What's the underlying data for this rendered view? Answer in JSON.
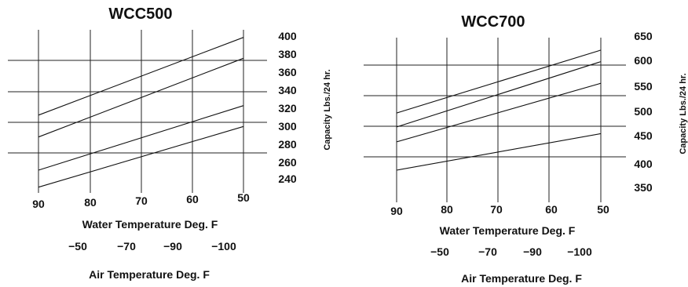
{
  "chart_data": [
    {
      "type": "line",
      "title": "WCC500",
      "xlabel": "Water Temperature Deg. F",
      "xlabel2": "Air Temperature Deg. F",
      "ylabel": "Capacity  Lbs./24 hr.",
      "x_ticks": [
        "90",
        "80",
        "70",
        "60",
        "50"
      ],
      "x2_ticks": [
        "−50",
        "−70",
        "−90",
        "−100"
      ],
      "y_ticks": [
        "400",
        "380",
        "360",
        "340",
        "320",
        "300",
        "280",
        "260",
        "240"
      ],
      "xlim": [
        90,
        50
      ],
      "ylim": [
        232,
        404
      ],
      "series": [
        {
          "x": [
            90,
            50
          ],
          "y": [
            314,
            396
          ]
        },
        {
          "x": [
            90,
            50
          ],
          "y": [
            291,
            374
          ]
        },
        {
          "x": [
            90,
            50
          ],
          "y": [
            256,
            324
          ]
        },
        {
          "x": [
            90,
            50
          ],
          "y": [
            238,
            302
          ]
        }
      ]
    },
    {
      "type": "line",
      "title": "WCC700",
      "xlabel": "Water Temperature Deg. F",
      "xlabel2": "Air Temperature Deg. F",
      "ylabel": "Capacity  Lbs./24 hr.",
      "x_ticks": [
        "90",
        "80",
        "70",
        "60",
        "50"
      ],
      "x2_ticks": [
        "−50",
        "−70",
        "−90",
        "−100"
      ],
      "y_ticks": [
        "650",
        "600",
        "550",
        "500",
        "450",
        "400",
        "350"
      ],
      "xlim": [
        90,
        50
      ],
      "ylim": [
        325,
        668
      ],
      "series": [
        {
          "x": [
            90,
            50
          ],
          "y": [
            511,
            642
          ]
        },
        {
          "x": [
            90,
            50
          ],
          "y": [
            482,
            618
          ]
        },
        {
          "x": [
            90,
            50
          ],
          "y": [
            451,
            573
          ]
        },
        {
          "x": [
            90,
            50
          ],
          "y": [
            392,
            468
          ]
        }
      ]
    }
  ]
}
